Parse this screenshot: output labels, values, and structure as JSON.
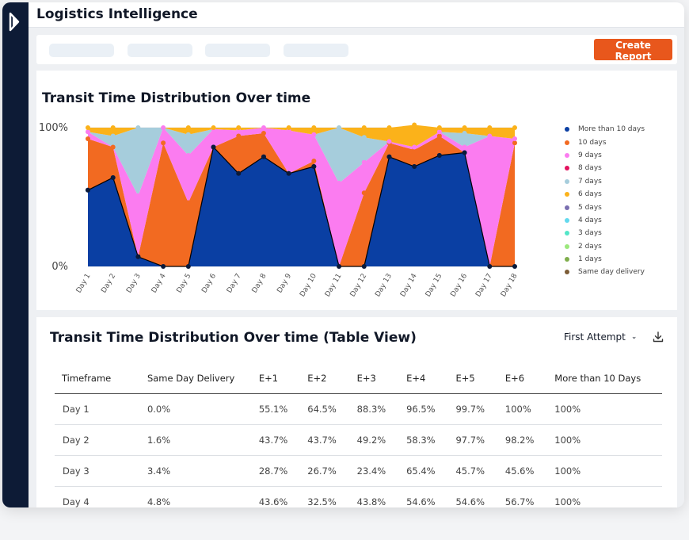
{
  "header": {
    "title": "Logistics Intelligence"
  },
  "toolbar": {
    "create_report_label": "Create Report"
  },
  "chart_data": {
    "type": "area",
    "title": "Transit Time Distribution Over time",
    "categories": [
      "Day 1",
      "Day 2",
      "Day 3",
      "Day 4",
      "Day 5",
      "Day 6",
      "Day 7",
      "Day 8",
      "Day 9",
      "Day 10",
      "Day 11",
      "Day 12",
      "Day 13",
      "Day 14",
      "Day 15",
      "Day 16",
      "Day 17",
      "Day 18"
    ],
    "y_ticks": [
      "100%",
      "0%"
    ],
    "ylim": [
      0,
      100
    ],
    "stacked": true,
    "grid": true,
    "legend_position": "right",
    "series": [
      {
        "name": "More than 10 days",
        "color": "#0a3fa3",
        "values": [
          55,
          64,
          7,
          0,
          0,
          86,
          67,
          79,
          67,
          72,
          0,
          0,
          79,
          72,
          80,
          82,
          0,
          0
        ]
      },
      {
        "name": "10 days",
        "color": "#f26a21",
        "values": [
          37,
          22,
          0,
          89,
          46,
          0,
          27,
          17,
          0,
          4,
          0,
          53,
          10,
          12,
          14,
          0,
          0,
          89
        ]
      },
      {
        "name": "9 days",
        "color": "#fb7cf0",
        "values": [
          5,
          0,
          44,
          11,
          34,
          13,
          4,
          4,
          31,
          19,
          60,
          22,
          1,
          2,
          3,
          4,
          94,
          3
        ]
      },
      {
        "name": "8 days",
        "color": "#e3125e",
        "values": [
          0,
          0,
          0,
          0,
          0,
          0,
          0,
          0,
          0,
          0,
          0,
          0,
          0,
          0,
          0,
          0,
          0,
          0
        ]
      },
      {
        "name": "7 days",
        "color": "#a6cddc",
        "values": [
          0,
          8,
          49,
          0,
          15,
          0,
          0,
          0,
          0,
          0,
          40,
          18,
          0,
          0,
          0,
          10,
          0,
          0
        ]
      },
      {
        "name": "6 days",
        "color": "#fbb21a",
        "values": [
          3,
          6,
          0,
          0,
          5,
          1,
          2,
          0,
          2,
          5,
          0,
          7,
          10,
          16,
          3,
          4,
          6,
          8
        ]
      },
      {
        "name": "5 days",
        "color": "#7a6fb0",
        "values": [
          0,
          0,
          0,
          0,
          0,
          0,
          0,
          0,
          0,
          0,
          0,
          0,
          0,
          0,
          0,
          0,
          0,
          0
        ]
      },
      {
        "name": "4 days",
        "color": "#63d9ee",
        "values": [
          0,
          0,
          0,
          0,
          0,
          0,
          0,
          0,
          0,
          0,
          0,
          0,
          0,
          0,
          0,
          0,
          0,
          0
        ]
      },
      {
        "name": "3 days",
        "color": "#54e6c8",
        "values": [
          0,
          0,
          0,
          0,
          0,
          0,
          0,
          0,
          0,
          0,
          0,
          0,
          0,
          0,
          0,
          0,
          0,
          0
        ]
      },
      {
        "name": "2 days",
        "color": "#9be87c",
        "values": [
          0,
          0,
          0,
          0,
          0,
          0,
          0,
          0,
          0,
          0,
          0,
          0,
          0,
          0,
          0,
          0,
          0,
          0
        ]
      },
      {
        "name": "1 days",
        "color": "#7fae4c",
        "values": [
          0,
          0,
          0,
          0,
          0,
          0,
          0,
          0,
          0,
          0,
          0,
          0,
          0,
          0,
          0,
          0,
          0,
          0
        ]
      },
      {
        "name": "Same day delivery",
        "color": "#7c5c36",
        "values": [
          0,
          0,
          0,
          0,
          0,
          0,
          0,
          0,
          0,
          0,
          0,
          0,
          0,
          0,
          0,
          0,
          0,
          0
        ]
      }
    ]
  },
  "table": {
    "title": "Transit Time Distribution Over time (Table View)",
    "attempt_filter": "First Attempt",
    "columns": [
      "Timeframe",
      "Same Day Delivery",
      "E+1",
      "E+2",
      "E+3",
      "E+4",
      "E+5",
      "E+6",
      "More than 10 Days"
    ],
    "rows": [
      [
        "Day 1",
        "0.0%",
        "55.1%",
        "64.5%",
        "88.3%",
        "96.5%",
        "99.7%",
        "100%",
        "100%"
      ],
      [
        "Day 2",
        "1.6%",
        "43.7%",
        "43.7%",
        "49.2%",
        "58.3%",
        "97.7%",
        "98.2%",
        "100%"
      ],
      [
        "Day 3",
        "3.4%",
        "28.7%",
        "26.7%",
        "23.4%",
        "65.4%",
        "45.7%",
        "45.6%",
        "100%"
      ],
      [
        "Day 4",
        "4.8%",
        "43.6%",
        "32.5%",
        "43.8%",
        "54.6%",
        "54.6%",
        "56.7%",
        "100%"
      ]
    ]
  }
}
